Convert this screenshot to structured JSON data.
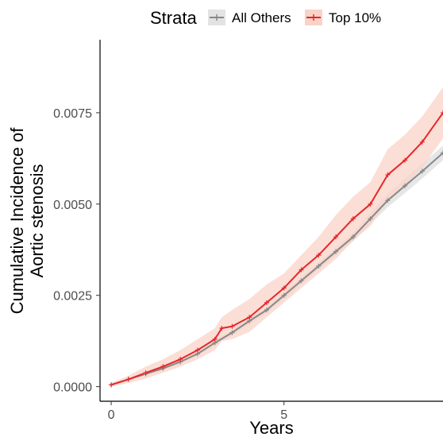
{
  "chart_data": {
    "type": "line",
    "xlabel": "Years",
    "ylabel_lines": [
      "Cumulative Incidence of",
      "Aortic stenosis"
    ],
    "x_ticks": [
      {
        "value": 0,
        "label": "0"
      },
      {
        "value": 5,
        "label": "5"
      }
    ],
    "y_ticks": [
      {
        "value": 0.0,
        "label": "0.0000"
      },
      {
        "value": 0.0025,
        "label": "0.0025"
      },
      {
        "value": 0.005,
        "label": "0.0050"
      },
      {
        "value": 0.0075,
        "label": "0.0075"
      }
    ],
    "xlim": [
      -0.3,
      9.6
    ],
    "ylim": [
      -0.0004,
      0.0095
    ],
    "grid": false,
    "legend": {
      "title": "Strata",
      "position": "top"
    },
    "series": [
      {
        "name": "All Others",
        "color": "#888888",
        "band_color": "#e3e3e3",
        "x": [
          0,
          0.5,
          1,
          1.5,
          2,
          2.5,
          3,
          3.5,
          4,
          4.5,
          5,
          5.5,
          6,
          6.5,
          7,
          7.5,
          8,
          8.5,
          9,
          9.6
        ],
        "y": [
          5e-05,
          0.0002,
          0.00035,
          0.0005,
          0.00068,
          0.0009,
          0.0012,
          0.00148,
          0.0018,
          0.0021,
          0.0025,
          0.0029,
          0.0033,
          0.0037,
          0.0041,
          0.0046,
          0.0051,
          0.0055,
          0.0059,
          0.0064
        ],
        "lower": [
          3e-05,
          0.00018,
          0.00032,
          0.00046,
          0.00063,
          0.00085,
          0.00114,
          0.0014,
          0.00172,
          0.00202,
          0.0024,
          0.0028,
          0.0032,
          0.0036,
          0.00398,
          0.00445,
          0.00492,
          0.0053,
          0.0057,
          0.0062
        ],
        "upper": [
          7e-05,
          0.00022,
          0.00038,
          0.00054,
          0.00073,
          0.00095,
          0.00126,
          0.00156,
          0.00188,
          0.00218,
          0.0026,
          0.003,
          0.0034,
          0.0038,
          0.00422,
          0.00475,
          0.00528,
          0.0057,
          0.0061,
          0.0066
        ]
      },
      {
        "name": "Top 10%",
        "color": "#e8262b",
        "band_color": "#f9d3c7",
        "x": [
          0,
          0.5,
          1,
          1.5,
          2,
          2.5,
          3,
          3.2,
          3.5,
          4,
          4.5,
          5,
          5.5,
          6,
          6.5,
          7,
          7.5,
          8,
          8.5,
          9,
          9.6
        ],
        "y": [
          5e-05,
          0.0002,
          0.00038,
          0.00055,
          0.00075,
          0.001,
          0.0013,
          0.0016,
          0.00165,
          0.0019,
          0.0023,
          0.0027,
          0.0032,
          0.0036,
          0.0041,
          0.0046,
          0.005,
          0.0058,
          0.0062,
          0.0067,
          0.0075
        ],
        "lower": [
          0.0,
          0.0001,
          0.00022,
          0.00038,
          0.00055,
          0.00075,
          0.001,
          0.00125,
          0.0013,
          0.0015,
          0.0019,
          0.0023,
          0.0027,
          0.0031,
          0.0035,
          0.004,
          0.0044,
          0.0051,
          0.0055,
          0.006,
          0.0068
        ],
        "upper": [
          0.0001,
          0.0003,
          0.00055,
          0.00075,
          0.001,
          0.0013,
          0.0016,
          0.0019,
          0.0021,
          0.0024,
          0.0028,
          0.0031,
          0.0036,
          0.0041,
          0.0047,
          0.0052,
          0.0056,
          0.0065,
          0.0069,
          0.0074,
          0.0082
        ]
      }
    ]
  }
}
